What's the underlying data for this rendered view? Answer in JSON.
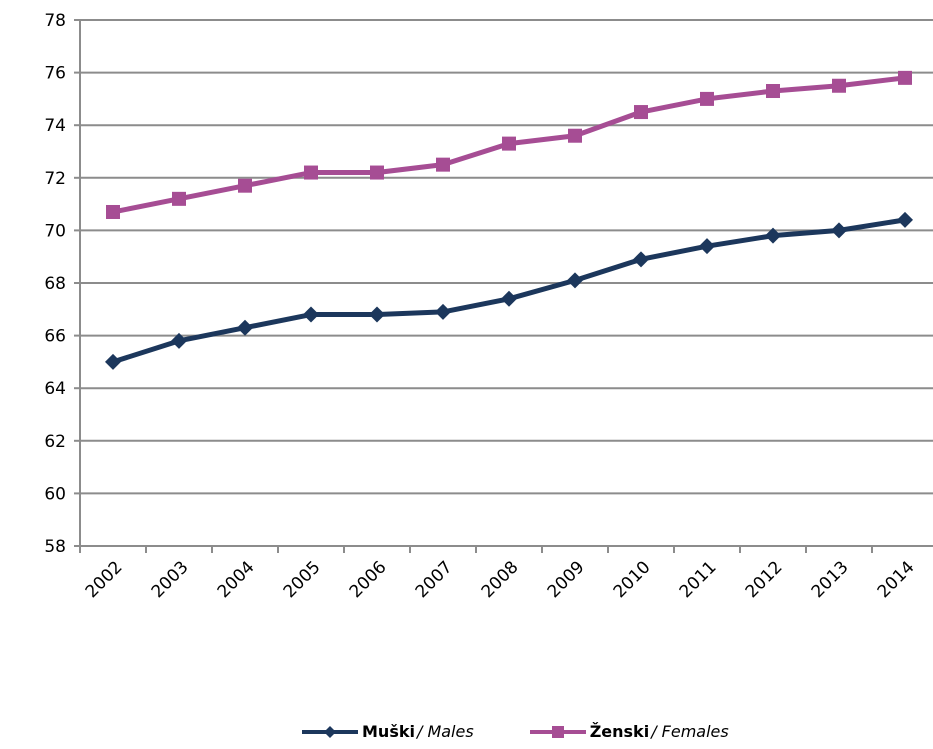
{
  "chart_data": {
    "type": "line",
    "x": [
      "2002",
      "2003",
      "2004",
      "2005",
      "2006",
      "2007",
      "2008",
      "2009",
      "2010",
      "2011",
      "2012",
      "2013",
      "2014"
    ],
    "ylim": [
      58,
      78
    ],
    "yticks": [
      58,
      60,
      62,
      64,
      66,
      68,
      70,
      72,
      74,
      76,
      78
    ],
    "grid": true,
    "legend_position": "bottom",
    "series": [
      {
        "name_bold": "Muški",
        "name_italic": "/ Males",
        "color": "#1c375c",
        "marker": "diamond",
        "values": [
          65.0,
          65.8,
          66.3,
          66.8,
          66.8,
          66.9,
          67.4,
          68.1,
          68.9,
          69.4,
          69.8,
          70.0,
          70.4
        ]
      },
      {
        "name_bold": "Ženski",
        "name_italic": "/ Females",
        "color": "#a64d94",
        "marker": "square",
        "values": [
          70.7,
          71.2,
          71.7,
          72.2,
          72.2,
          72.5,
          73.3,
          73.6,
          74.5,
          75.0,
          75.3,
          75.5,
          75.8
        ]
      }
    ]
  }
}
